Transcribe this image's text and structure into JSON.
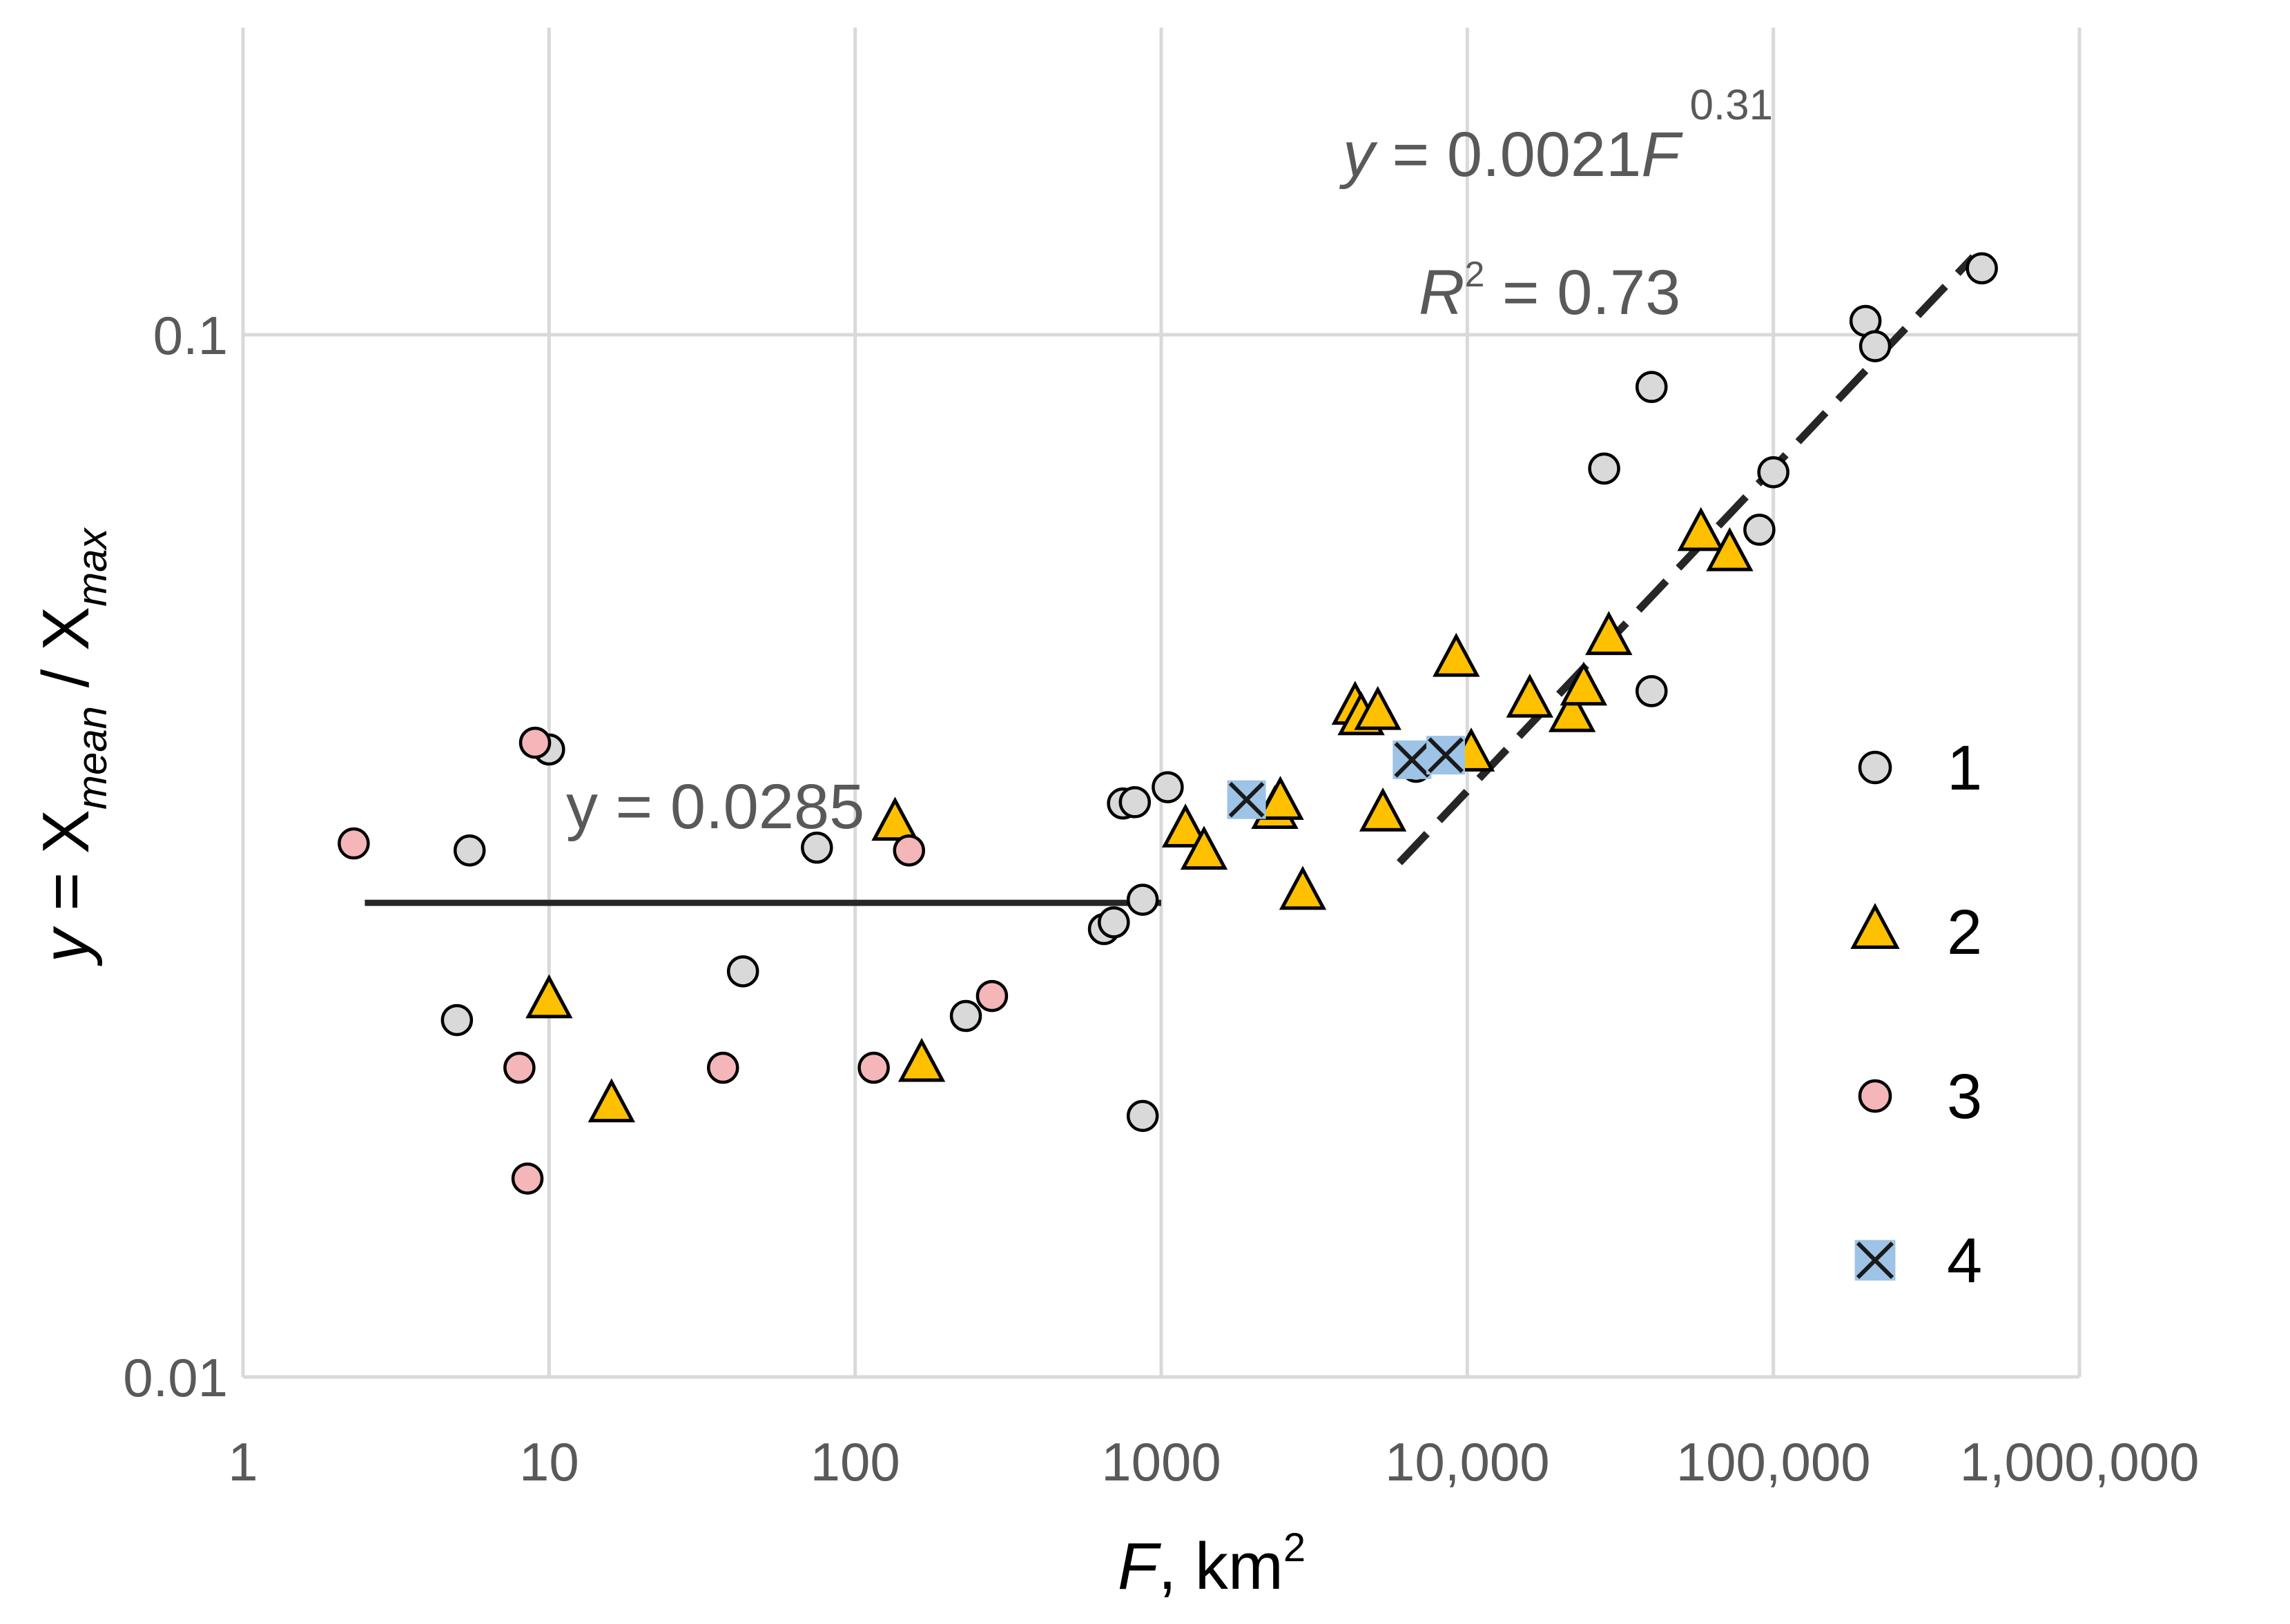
{
  "chart_data": {
    "type": "scatter",
    "xscale": "log",
    "yscale": "log",
    "xlim": [
      1,
      1000000
    ],
    "ylim": [
      0.01,
      0.2
    ],
    "grid": true,
    "legend_position": "right",
    "xlabel": {
      "var": "F",
      "rest": ", km",
      "sup": "2"
    },
    "ylabel": {
      "y": "y",
      "eq": " = X",
      "sub1": "mean",
      "slash": " / X",
      "sub2": "max"
    },
    "xticks": [
      {
        "value": 1,
        "label": "1"
      },
      {
        "value": 10,
        "label": "10"
      },
      {
        "value": 100,
        "label": "100"
      },
      {
        "value": 1000,
        "label": "1000"
      },
      {
        "value": 10000,
        "label": "10,000"
      },
      {
        "value": 100000,
        "label": "100,000"
      },
      {
        "value": 1000000,
        "label": "1,000,000"
      }
    ],
    "yticks": [
      {
        "value": 0.01,
        "label": "0.01"
      },
      {
        "value": 0.1,
        "label": "0.1"
      }
    ],
    "series": [
      {
        "name": "1",
        "marker": "circle",
        "color": "#d9d9d9",
        "points": [
          [
            5,
            0.022
          ],
          [
            5.5,
            0.032
          ],
          [
            10,
            0.04
          ],
          [
            43,
            0.0245
          ],
          [
            75,
            0.0322
          ],
          [
            230,
            0.0222
          ],
          [
            650,
            0.0269
          ],
          [
            700,
            0.0273
          ],
          [
            750,
            0.0355
          ],
          [
            820,
            0.0356
          ],
          [
            870,
            0.0287
          ],
          [
            870,
            0.0178
          ],
          [
            1050,
            0.0368
          ],
          [
            6800,
            0.0385
          ],
          [
            28000,
            0.0744
          ],
          [
            40000,
            0.0455
          ],
          [
            40000,
            0.0891
          ],
          [
            90000,
            0.065
          ],
          [
            100000,
            0.0738
          ],
          [
            200000,
            0.1031
          ],
          [
            215000,
            0.0975
          ],
          [
            480000,
            0.1158
          ]
        ]
      },
      {
        "name": "2",
        "marker": "triangle",
        "color": "#ffc000",
        "points": [
          [
            10,
            0.0229
          ],
          [
            16,
            0.0182
          ],
          [
            135,
            0.0339
          ],
          [
            165,
            0.0199
          ],
          [
            1200,
            0.0334
          ],
          [
            1380,
            0.0318
          ],
          [
            2350,
            0.0348
          ],
          [
            2450,
            0.0355
          ],
          [
            2900,
            0.0291
          ],
          [
            4300,
            0.0438
          ],
          [
            4500,
            0.0428
          ],
          [
            5100,
            0.0433
          ],
          [
            5300,
            0.0346
          ],
          [
            9200,
            0.0487
          ],
          [
            10300,
            0.0395
          ],
          [
            16000,
            0.0445
          ],
          [
            22000,
            0.0431
          ],
          [
            24000,
            0.0457
          ],
          [
            29000,
            0.0511
          ],
          [
            58000,
            0.0643
          ],
          [
            72000,
            0.0615
          ]
        ]
      },
      {
        "name": "3",
        "marker": "circle",
        "color": "#f4b6b9",
        "points": [
          [
            2.3,
            0.0325
          ],
          [
            8,
            0.0198
          ],
          [
            8.5,
            0.0155
          ],
          [
            9,
            0.0406
          ],
          [
            37,
            0.0198
          ],
          [
            115,
            0.0198
          ],
          [
            150,
            0.032
          ],
          [
            280,
            0.0232
          ]
        ]
      },
      {
        "name": "4",
        "marker": "x",
        "color": "#9dc3e6",
        "points": [
          [
            1900,
            0.0358
          ],
          [
            6600,
            0.0391
          ],
          [
            8500,
            0.0395
          ]
        ]
      }
    ],
    "fits": [
      {
        "kind": "constant",
        "style": "solid",
        "x": [
          2.5,
          1000
        ],
        "y": [
          0.0285,
          0.0285
        ]
      },
      {
        "kind": "power",
        "style": "dashed",
        "x": [
          6000,
          450000
        ],
        "coef": 0.0021,
        "exp": 0.31
      }
    ],
    "annotations": {
      "const_eq": "y = 0.0285",
      "power_y": "y",
      "power_mid": " = 0.0021",
      "power_F": "F",
      "power_exp": "0.31",
      "r2_R": "R",
      "r2_sup": "2",
      "r2_rest": " = 0.73"
    }
  }
}
